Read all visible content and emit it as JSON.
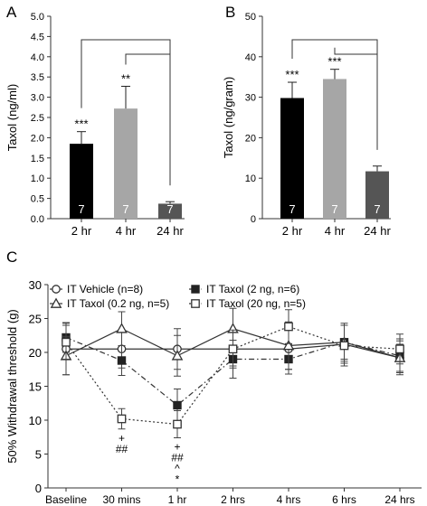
{
  "chart_data": [
    {
      "type": "bar",
      "panel_label": "A",
      "ylabel": "Taxol (ng/ml)",
      "categories": [
        "2 hr",
        "4 hr",
        "24 hr"
      ],
      "values": [
        1.85,
        2.72,
        0.37
      ],
      "errors": [
        0.3,
        0.55,
        0.05
      ],
      "n_labels": [
        "7",
        "7",
        "7"
      ],
      "sig_labels": [
        "***",
        "**",
        ""
      ],
      "colors": [
        "#000000",
        "#a6a6a6",
        "#555555"
      ],
      "ylim": [
        0,
        5.0
      ],
      "yticks": [
        "0.0",
        "0.5",
        "1.0",
        "1.5",
        "2.0",
        "2.5",
        "3.0",
        "3.5",
        "4.0",
        "4.5",
        "5.0"
      ],
      "brackets": [
        {
          "from": 0,
          "to": 2
        },
        {
          "from": 1,
          "to": 2
        }
      ]
    },
    {
      "type": "bar",
      "panel_label": "B",
      "ylabel": "Taxol (ng/gram)",
      "categories": [
        "2 hr",
        "4 hr",
        "24 hr"
      ],
      "values": [
        29.8,
        34.5,
        11.7
      ],
      "errors": [
        3.9,
        2.4,
        1.3
      ],
      "n_labels": [
        "7",
        "7",
        "7"
      ],
      "sig_labels": [
        "***",
        "***",
        ""
      ],
      "colors": [
        "#000000",
        "#a6a6a6",
        "#555555"
      ],
      "ylim": [
        0,
        50
      ],
      "yticks": [
        "0",
        "10",
        "20",
        "30",
        "40",
        "50"
      ],
      "brackets": [
        {
          "from": 0,
          "to": 2
        },
        {
          "from": 1,
          "to": 2
        }
      ]
    },
    {
      "type": "line",
      "panel_label": "C",
      "ylabel": "50% Withdrawal threshold (g)",
      "categories": [
        "Baseline",
        "30 mins",
        "1 hr",
        "2 hrs",
        "4 hrs",
        "6 hrs",
        "24 hrs"
      ],
      "ylim": [
        0,
        30
      ],
      "yticks": [
        "0",
        "5",
        "10",
        "15",
        "20",
        "25",
        "30"
      ],
      "series": [
        {
          "name": "IT Vehicle (n=8)",
          "marker": "circle-open",
          "dash": "solid",
          "values": [
            20.5,
            20.5,
            20.5,
            20.5,
            20.5,
            21.2,
            19.2
          ],
          "errors": [
            3.8,
            2.8,
            3.0,
            2.5,
            3.0,
            2.8,
            2.0
          ]
        },
        {
          "name": "IT Taxol (2 ng, n=6)",
          "marker": "square-filled",
          "dash": "dashdot",
          "values": [
            22.2,
            18.8,
            12.2,
            19.0,
            19.0,
            21.5,
            19.5
          ],
          "errors": [
            2.2,
            2.2,
            2.4,
            2.8,
            2.2,
            2.5,
            2.5
          ]
        },
        {
          "name": "IT Taxol (0.2 ng, n=5)",
          "marker": "triangle-open",
          "dash": "solid",
          "values": [
            19.5,
            23.5,
            19.5,
            23.5,
            21.0,
            21.5,
            19.2
          ],
          "errors": [
            2.8,
            2.5,
            3.0,
            3.0,
            3.5,
            2.8,
            2.5
          ]
        },
        {
          "name": "IT Taxol (20 ng, n=5)",
          "marker": "square-open",
          "dash": "dotted",
          "values": [
            21.5,
            10.2,
            9.4,
            20.5,
            23.8,
            21.0,
            20.5
          ],
          "errors": [
            2.5,
            1.5,
            2.0,
            2.8,
            2.5,
            3.0,
            2.2
          ]
        }
      ],
      "annotations": [
        {
          "category": "30 mins",
          "lines": [
            "+",
            "##"
          ]
        },
        {
          "category": "1 hr",
          "lines": [
            "+",
            "##",
            "^",
            "*"
          ]
        }
      ]
    }
  ]
}
